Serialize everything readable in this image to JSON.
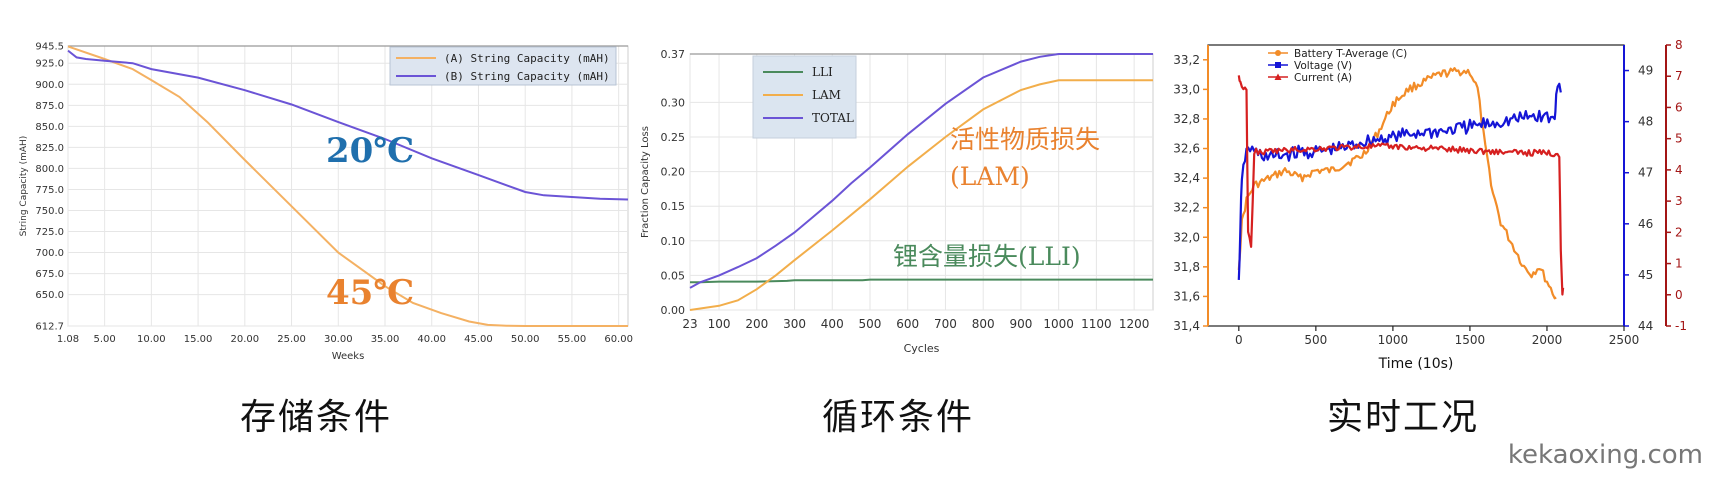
{
  "colors": {
    "orange": "#f4b163",
    "purple": "#6b54d6",
    "lam_orange": "#f2ae4b",
    "lli_green": "#4a8a5c",
    "blue_label": "#1f6fad",
    "orange_label": "#e9822f",
    "rt_orange": "#f28c28",
    "rt_blue": "#1515d6",
    "rt_red": "#d62020",
    "rt_right_axis_red": "#a31515"
  },
  "captions": [
    "存储条件",
    "循环条件",
    "实时工况"
  ],
  "watermark": "kekaoxing.com",
  "chart_data": [
    {
      "type": "line",
      "xlabel": "Weeks",
      "ylabel": "String Capacity (mAH)",
      "xticks": [
        "1.08",
        "5.00",
        "10.00",
        "15.00",
        "20.00",
        "25.00",
        "30.00",
        "35.00",
        "40.00",
        "45.00",
        "50.00",
        "55.00",
        "60.00"
      ],
      "xlim": [
        1.08,
        61
      ],
      "yticks": [
        "945.5",
        "925.0",
        "900.0",
        "875.0",
        "850.0",
        "825.0",
        "800.0",
        "775.0",
        "750.0",
        "725.0",
        "700.0",
        "675.0",
        "650.0",
        "612.7"
      ],
      "ylim": [
        612.7,
        945.5
      ],
      "legend_position": "top-right",
      "annotations": [
        {
          "text": "20℃",
          "series": "(B) String Capacity (mAH)"
        },
        {
          "text": "45℃",
          "series": "(A) String Capacity (mAH)"
        }
      ],
      "series": [
        {
          "name": "(A) String Capacity (mAH)",
          "color": "orange",
          "x": [
            1.08,
            5,
            8,
            10,
            13,
            16,
            20,
            25,
            30,
            35,
            38,
            41,
            44,
            46,
            48,
            50,
            55,
            61
          ],
          "y": [
            945,
            930,
            918,
            905,
            885,
            855,
            810,
            755,
            700,
            660,
            640,
            628,
            618,
            614,
            613,
            612.7,
            612.7,
            612.7
          ]
        },
        {
          "name": "(B) String Capacity (mAH)",
          "color": "purple",
          "x": [
            1.08,
            2,
            3,
            5,
            8,
            10,
            15,
            20,
            25,
            30,
            35,
            40,
            45,
            50,
            52,
            55,
            58,
            61
          ],
          "y": [
            940,
            932,
            930,
            928,
            925,
            918,
            908,
            893,
            876,
            855,
            835,
            812,
            792,
            772,
            768,
            766,
            764,
            763
          ]
        }
      ]
    },
    {
      "type": "line",
      "xlabel": "Cycles",
      "ylabel": "Fraction Capacity Loss",
      "xticks": [
        "23",
        "100",
        "200",
        "300",
        "400",
        "500",
        "600",
        "700",
        "800",
        "900",
        "1000",
        "1100",
        "1200"
      ],
      "xlim": [
        23,
        1250
      ],
      "yticks": [
        "0.00",
        "0.05",
        "0.10",
        "0.15",
        "0.20",
        "0.25",
        "0.30",
        "0.37"
      ],
      "ylim": [
        0,
        0.37
      ],
      "legend_position": "top-left",
      "annotations": [
        {
          "text": "活性物质损失",
          "series": "LAM"
        },
        {
          "text": "(LAM)",
          "series": "LAM"
        },
        {
          "text": "锂含量损失(LLI)",
          "series": "LLI"
        }
      ],
      "series": [
        {
          "name": "LLI",
          "color": "lli_green",
          "x": [
            23,
            50,
            100,
            200,
            280,
            300,
            480,
            500,
            600,
            800,
            1000,
            1250
          ],
          "y": [
            0.04,
            0.04,
            0.041,
            0.041,
            0.042,
            0.043,
            0.043,
            0.044,
            0.044,
            0.044,
            0.044,
            0.044
          ]
        },
        {
          "name": "LAM",
          "color": "lam_orange",
          "x": [
            23,
            100,
            150,
            200,
            250,
            300,
            400,
            500,
            600,
            700,
            800,
            900,
            950,
            1000,
            1250
          ],
          "y": [
            0.0,
            0.006,
            0.014,
            0.03,
            0.05,
            0.072,
            0.115,
            0.16,
            0.207,
            0.25,
            0.29,
            0.318,
            0.326,
            0.332,
            0.332
          ]
        },
        {
          "name": "TOTAL",
          "color": "purple",
          "x": [
            23,
            50,
            100,
            150,
            200,
            250,
            300,
            350,
            400,
            450,
            500,
            600,
            700,
            800,
            900,
            950,
            1000,
            1250
          ],
          "y": [
            0.032,
            0.04,
            0.05,
            0.062,
            0.075,
            0.093,
            0.112,
            0.135,
            0.158,
            0.183,
            0.206,
            0.254,
            0.298,
            0.336,
            0.359,
            0.366,
            0.37,
            0.37
          ]
        }
      ]
    },
    {
      "type": "scatter",
      "xlabel": "Time (10s)",
      "ylabel": "",
      "xticks": [
        "0",
        "500",
        "1000",
        "1500",
        "2000",
        "2500"
      ],
      "xlim": [
        -200,
        2500
      ],
      "yticks_left": [
        "31,4",
        "31,6",
        "31,8",
        "32,0",
        "32,2",
        "32,4",
        "32,6",
        "32,8",
        "33,0",
        "33,2"
      ],
      "ylim_left": [
        31.4,
        33.3
      ],
      "yticks_mid": [
        "44",
        "45",
        "46",
        "47",
        "48",
        "49"
      ],
      "ylim_mid": [
        44,
        49.5
      ],
      "yticks_right": [
        "-1",
        "0",
        "1",
        "2",
        "3",
        "4",
        "5",
        "6",
        "7",
        "8"
      ],
      "ylim_right": [
        -1,
        8
      ],
      "legend_position": "top-left",
      "series": [
        {
          "name": "Battery T-Average (C)",
          "color": "rt_orange",
          "axis": "left",
          "x": [
            0,
            20,
            50,
            100,
            200,
            300,
            400,
            500,
            600,
            700,
            800,
            900,
            1000,
            1100,
            1200,
            1300,
            1400,
            1500,
            1550,
            1600,
            1650,
            1700,
            1750,
            1800,
            1850,
            1900,
            1950,
            2000,
            2050,
            2070
          ],
          "y": [
            31.8,
            32.1,
            32.25,
            32.35,
            32.4,
            32.45,
            32.4,
            32.45,
            32.45,
            32.5,
            32.55,
            32.7,
            32.9,
            33.0,
            33.05,
            33.1,
            33.12,
            33.12,
            33.0,
            32.6,
            32.3,
            32.1,
            32.0,
            31.9,
            31.8,
            31.75,
            31.8,
            31.7,
            31.6,
            31.58
          ]
        },
        {
          "name": "Voltage (V)",
          "color": "rt_blue",
          "axis": "mid",
          "x": [
            0,
            10,
            20,
            40,
            60,
            100,
            200,
            300,
            400,
            500,
            600,
            700,
            800,
            900,
            1000,
            1100,
            1200,
            1300,
            1400,
            1500,
            1600,
            1700,
            1800,
            1900,
            2000,
            2050,
            2060,
            2080,
            2100
          ],
          "y": [
            44.8,
            46.0,
            46.8,
            47.3,
            47.5,
            47.4,
            47.3,
            47.35,
            47.4,
            47.4,
            47.45,
            47.5,
            47.6,
            47.65,
            47.7,
            47.75,
            47.8,
            47.8,
            47.85,
            47.9,
            47.95,
            48.0,
            48.05,
            48.1,
            48.1,
            48.0,
            48.5,
            48.8,
            48.6
          ]
        },
        {
          "name": "Current (A)",
          "color": "rt_red",
          "axis": "right",
          "x": [
            0,
            10,
            30,
            50,
            60,
            80,
            100,
            150,
            200,
            400,
            600,
            800,
            1000,
            1200,
            1400,
            1600,
            1800,
            2000,
            2080,
            2090,
            2100,
            2110
          ],
          "y": [
            7.0,
            6.8,
            6.6,
            6.5,
            2.0,
            1.5,
            4.6,
            4.55,
            4.6,
            4.65,
            4.7,
            4.75,
            4.75,
            4.7,
            4.65,
            4.6,
            4.55,
            4.55,
            4.5,
            1.5,
            0.0,
            0.5
          ]
        }
      ]
    }
  ]
}
